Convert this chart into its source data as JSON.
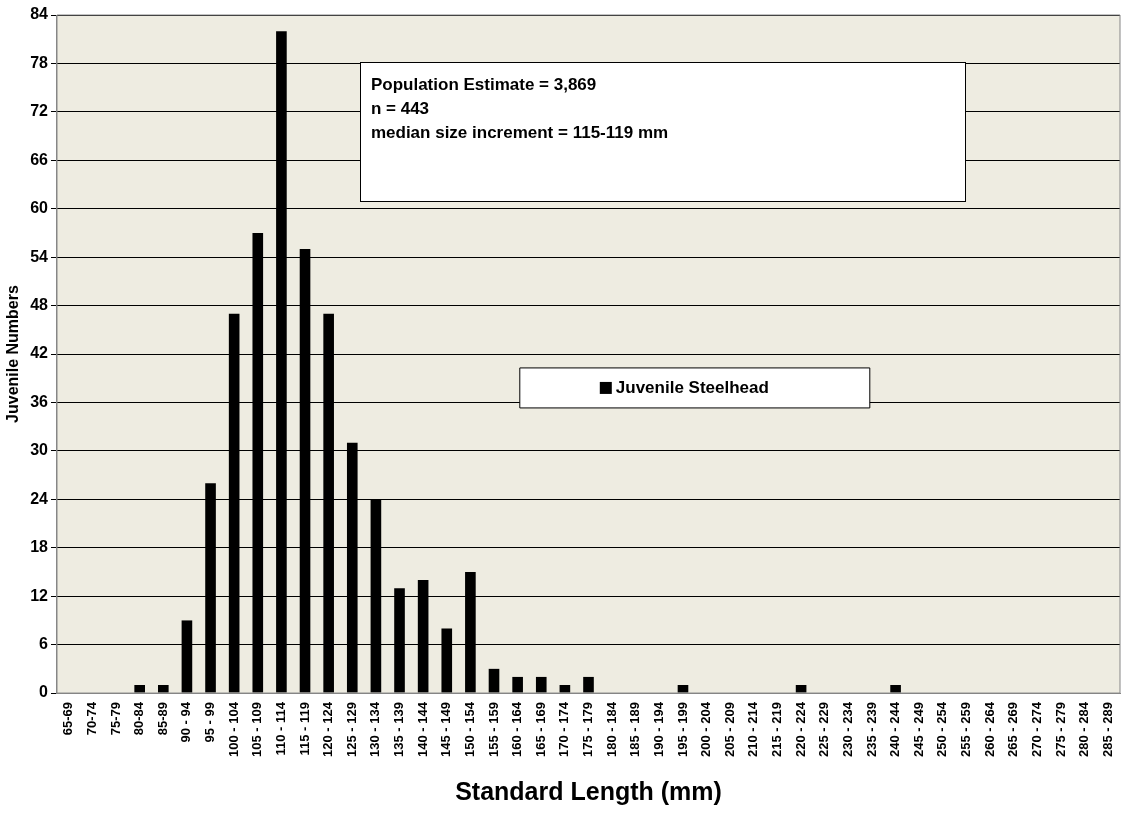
{
  "chart_data": {
    "type": "bar",
    "xlabel": "Standard Length (mm)",
    "ylabel": "Juvenile Numbers",
    "categories": [
      "65-69",
      "70-74",
      "75-79",
      "80-84",
      "85-89",
      "90 - 94",
      "95 - 99",
      "100 - 104",
      "105 - 109",
      "110 - 114",
      "115 - 119",
      "120 - 124",
      "125 - 129",
      "130 - 134",
      "135 - 139",
      "140 - 144",
      "145 - 149",
      "150 - 154",
      "155 - 159",
      "160 - 164",
      "165 - 169",
      "170 - 174",
      "175 - 179",
      "180 - 184",
      "185 - 189",
      "190 - 194",
      "195 - 199",
      "200 - 204",
      "205 - 209",
      "210 - 214",
      "215 - 219",
      "220 - 224",
      "225 - 229",
      "230 - 234",
      "235 - 239",
      "240 - 244",
      "245 - 249",
      "250 - 254",
      "255 - 259",
      "260 - 264",
      "265 - 269",
      "270 - 274",
      "275 - 279",
      "280 - 284",
      "285 - 289"
    ],
    "series": [
      {
        "name": "Juvenile Steelhead",
        "color": "#000000",
        "values": [
          0,
          0,
          0,
          1,
          1,
          9,
          26,
          47,
          57,
          82,
          55,
          47,
          31,
          24,
          13,
          14,
          8,
          15,
          3,
          2,
          2,
          1,
          2,
          0,
          0,
          0,
          1,
          0,
          0,
          0,
          0,
          1,
          0,
          0,
          0,
          1,
          0,
          0,
          0,
          0,
          0,
          0,
          0,
          0,
          0
        ]
      }
    ],
    "ylim": [
      0,
      84
    ],
    "yticks": [
      0,
      6,
      12,
      18,
      24,
      30,
      36,
      42,
      48,
      54,
      60,
      66,
      72,
      78,
      84
    ],
    "grid": "y",
    "legend": "center",
    "annotations": [
      "Population Estimate = 3,869",
      "n = 443",
      "median size increment = 115-119 mm"
    ]
  }
}
